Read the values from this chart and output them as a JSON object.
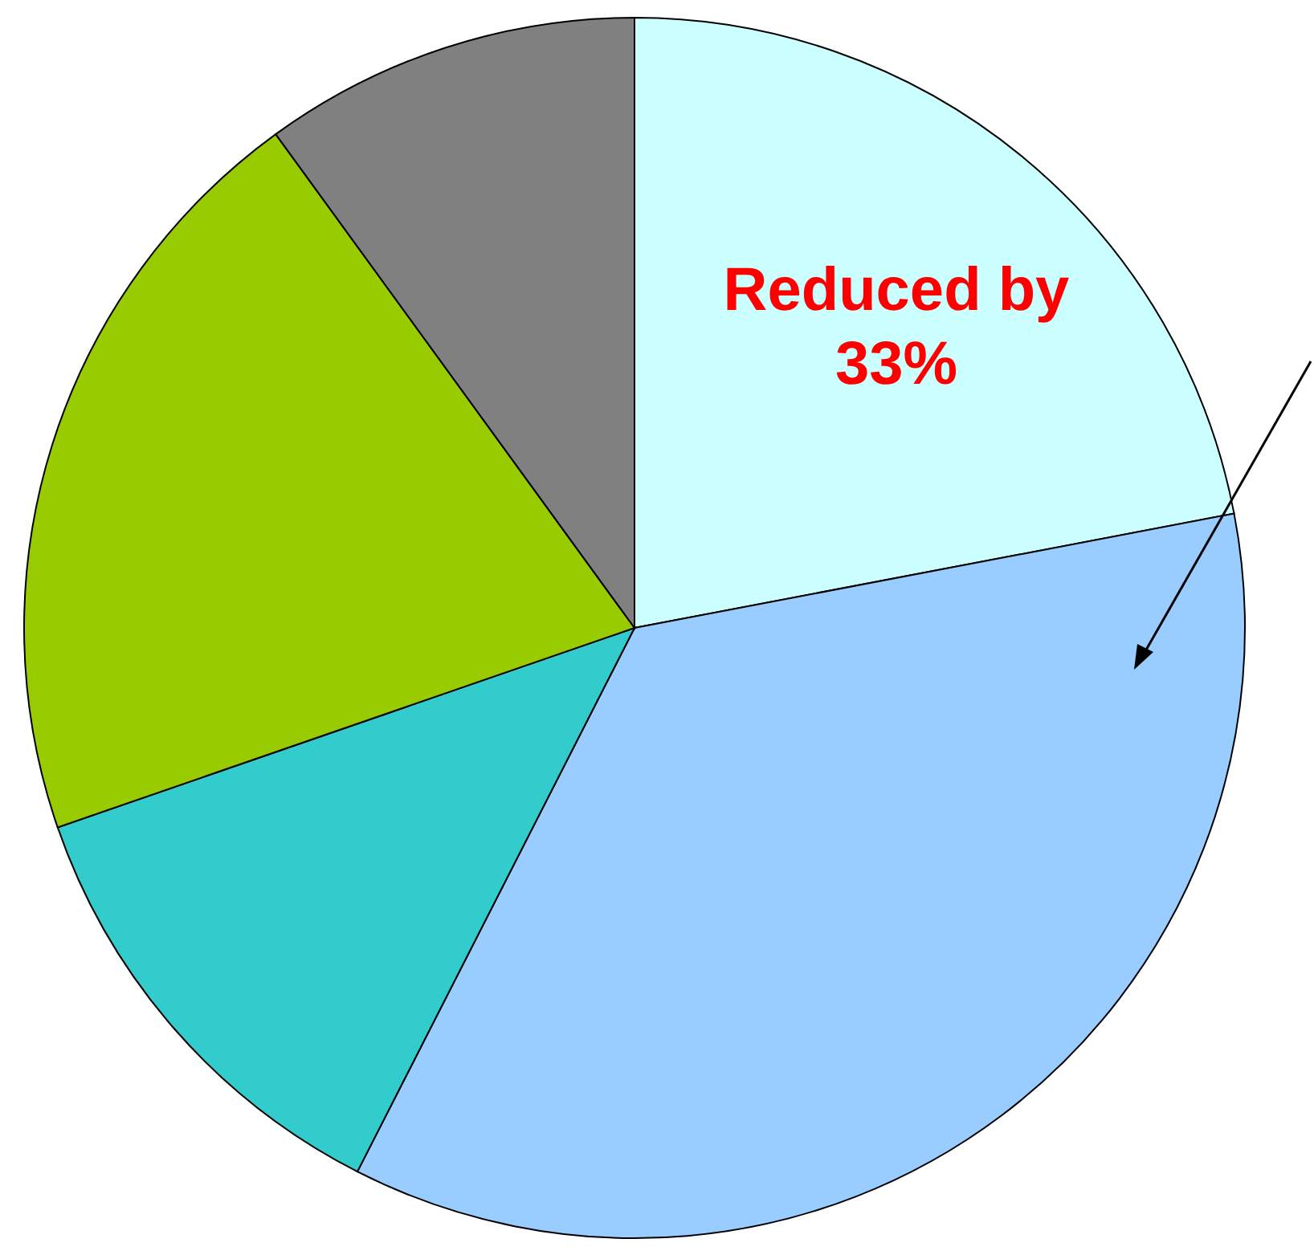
{
  "chart_data": {
    "type": "pie",
    "categories": [
      null,
      null,
      null,
      null,
      null
    ],
    "values": [
      22,
      35.5,
      12.2,
      20.3,
      10
    ],
    "colors": [
      "#ccffff",
      "#99ccff",
      "#33cccc",
      "#99cc00",
      "#808080"
    ],
    "annotations": [
      "Reduced by 33%"
    ],
    "legend": false
  }
}
